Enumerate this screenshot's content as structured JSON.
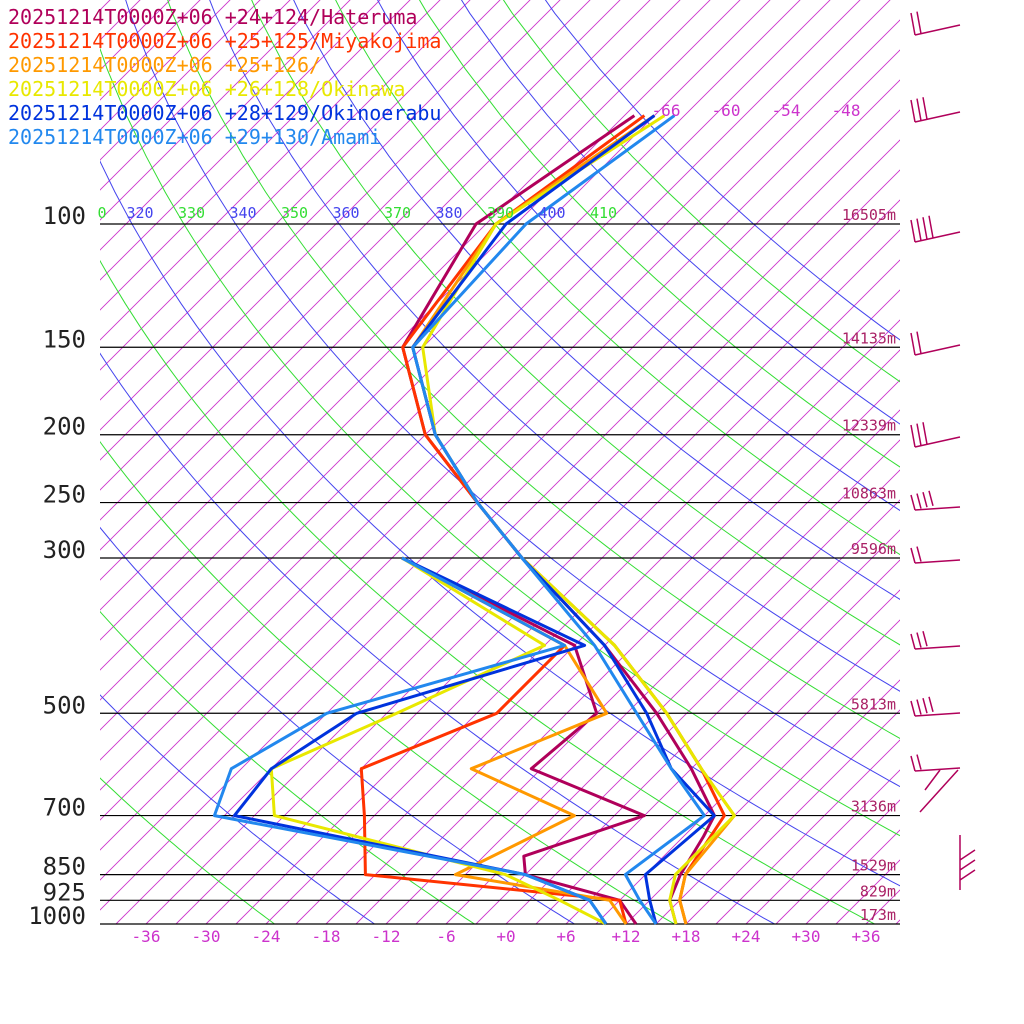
{
  "chart_data": {
    "type": "line",
    "subtype": "skew-T log-P sounding",
    "legend": [
      {
        "text": "20251214T0000Z+06 +24+124/Hateruma",
        "color": "#b0005a"
      },
      {
        "text": "20251214T0000Z+06 +25+125/Miyakojima",
        "color": "#ff3300"
      },
      {
        "text": "20251214T0000Z+06 +25+126/",
        "color": "#ff9900"
      },
      {
        "text": "20251214T0000Z+06 +26+128/Okinawa",
        "color": "#e8e800"
      },
      {
        "text": "20251214T0000Z+06 +28+129/Okinoerabu",
        "color": "#0033dd"
      },
      {
        "text": "20251214T0000Z+06 +29+130/Amami",
        "color": "#2288ee"
      }
    ],
    "legend_placement": "top-left",
    "pressure_levels": [
      {
        "p": 100,
        "label": "100",
        "height": "16505m"
      },
      {
        "p": 150,
        "label": "150",
        "height": "14135m"
      },
      {
        "p": 200,
        "label": "200",
        "height": "12339m"
      },
      {
        "p": 250,
        "label": "250",
        "height": "10863m"
      },
      {
        "p": 300,
        "label": "300",
        "height": "9596m"
      },
      {
        "p": 500,
        "label": "500",
        "height": "5813m"
      },
      {
        "p": 700,
        "label": "700",
        "height": "3136m"
      },
      {
        "p": 850,
        "label": "850",
        "height": "1529m"
      },
      {
        "p": 925,
        "label": "925",
        "height": "829m"
      },
      {
        "p": 1000,
        "label": "1000",
        "height": "173m"
      }
    ],
    "x_ticks": [
      "-36",
      "-30",
      "-24",
      "-18",
      "-12",
      "-6",
      "+0",
      "+6",
      "+12",
      "+18",
      "+24",
      "+30",
      "+36"
    ],
    "upper_temp_labels": [
      "-66",
      "-60",
      "-54",
      "-48"
    ],
    "theta_labels": [
      {
        "text": "0",
        "color": "#33dd33"
      },
      {
        "text": "320",
        "color": "#4444ee"
      },
      {
        "text": "330",
        "color": "#33dd33"
      },
      {
        "text": "340",
        "color": "#4444ee"
      },
      {
        "text": "350",
        "color": "#33dd33"
      },
      {
        "text": "360",
        "color": "#4444ee"
      },
      {
        "text": "370",
        "color": "#33dd33"
      },
      {
        "text": "380",
        "color": "#4444ee"
      },
      {
        "text": "390",
        "color": "#33dd33"
      },
      {
        "text": "400",
        "color": "#4444ee"
      },
      {
        "text": "410",
        "color": "#33dd33"
      }
    ],
    "colors": {
      "isotherm": "#cc33cc",
      "theta_a": "#4444ee",
      "theta_b": "#33dd33",
      "isobar": "#000000",
      "tick_label": "#cc33cc",
      "height_label": "#aa2266",
      "wind_barb": "#b0005a"
    },
    "series": [
      {
        "name": "20251214T0000Z+06 +24+124/Hateruma",
        "color": "#b0005a",
        "temperature": [
          [
            70,
            -68
          ],
          [
            100,
            -73
          ],
          [
            150,
            -68
          ],
          [
            200,
            -57
          ],
          [
            250,
            -45
          ],
          [
            300,
            -35
          ],
          [
            400,
            -18
          ],
          [
            500,
            -6
          ],
          [
            600,
            3
          ],
          [
            700,
            10
          ],
          [
            750,
            11
          ],
          [
            850,
            12.5
          ],
          [
            925,
            14
          ],
          [
            1000,
            17
          ]
        ],
        "dewpoint": [
          [
            300,
            -47
          ],
          [
            400,
            -21
          ],
          [
            500,
            -12
          ],
          [
            600,
            -13
          ],
          [
            700,
            3
          ],
          [
            800,
            -5
          ],
          [
            850,
            -3
          ],
          [
            925,
            9
          ],
          [
            1000,
            13
          ]
        ]
      },
      {
        "name": "20251214T0000Z+06 +25+125/Miyakojima",
        "color": "#ff3300",
        "temperature": [
          [
            70,
            -67
          ],
          [
            100,
            -71
          ],
          [
            150,
            -68
          ],
          [
            200,
            -57
          ],
          [
            250,
            -45
          ],
          [
            300,
            -35
          ],
          [
            400,
            -17
          ],
          [
            500,
            -5
          ],
          [
            600,
            4
          ],
          [
            700,
            11
          ],
          [
            850,
            13
          ],
          [
            925,
            15
          ],
          [
            1000,
            18
          ]
        ],
        "dewpoint": [
          [
            300,
            -47
          ],
          [
            400,
            -22
          ],
          [
            500,
            -22
          ],
          [
            600,
            -30
          ],
          [
            700,
            -25
          ],
          [
            850,
            -19
          ],
          [
            925,
            9
          ],
          [
            1000,
            12
          ]
        ]
      },
      {
        "name": "20251214T0000Z+06 +25+126/",
        "color": "#ff9900",
        "temperature": [
          [
            70,
            -66
          ],
          [
            100,
            -71
          ],
          [
            150,
            -67
          ],
          [
            200,
            -56
          ],
          [
            250,
            -45
          ],
          [
            300,
            -35
          ],
          [
            400,
            -17
          ],
          [
            500,
            -5
          ],
          [
            600,
            4
          ],
          [
            700,
            12
          ],
          [
            850,
            13
          ],
          [
            925,
            15
          ],
          [
            1000,
            18
          ]
        ],
        "dewpoint": [
          [
            300,
            -47
          ],
          [
            400,
            -22
          ],
          [
            500,
            -11
          ],
          [
            600,
            -19
          ],
          [
            700,
            -4
          ],
          [
            850,
            -10
          ],
          [
            925,
            8
          ],
          [
            1000,
            12
          ]
        ]
      },
      {
        "name": "20251214T0000Z+06 +26+128/Okinawa",
        "color": "#e8e800",
        "temperature": [
          [
            70,
            -65
          ],
          [
            100,
            -71
          ],
          [
            150,
            -66
          ],
          [
            200,
            -56
          ],
          [
            250,
            -45
          ],
          [
            300,
            -35
          ],
          [
            400,
            -17
          ],
          [
            500,
            -5
          ],
          [
            600,
            4
          ],
          [
            700,
            12
          ],
          [
            850,
            12
          ],
          [
            925,
            14
          ],
          [
            1000,
            17
          ]
        ],
        "dewpoint": [
          [
            300,
            -47
          ],
          [
            400,
            -24
          ],
          [
            500,
            -32
          ],
          [
            600,
            -39
          ],
          [
            700,
            -34
          ],
          [
            850,
            -5
          ],
          [
            925,
            3
          ],
          [
            1000,
            10
          ]
        ]
      },
      {
        "name": "20251214T0000Z+06 +28+129/Okinoerabu",
        "color": "#0033dd",
        "temperature": [
          [
            70,
            -66
          ],
          [
            100,
            -70
          ],
          [
            150,
            -67
          ],
          [
            200,
            -56
          ],
          [
            250,
            -45
          ],
          [
            300,
            -35
          ],
          [
            400,
            -18
          ],
          [
            500,
            -7
          ],
          [
            600,
            1
          ],
          [
            700,
            10
          ],
          [
            850,
            9
          ],
          [
            925,
            12
          ],
          [
            1000,
            15
          ]
        ],
        "dewpoint": [
          [
            300,
            -47
          ],
          [
            400,
            -20
          ],
          [
            500,
            -36
          ],
          [
            600,
            -39
          ],
          [
            700,
            -38
          ],
          [
            850,
            -3
          ],
          [
            925,
            6
          ],
          [
            1000,
            10
          ]
        ]
      },
      {
        "name": "20251214T0000Z+06 +29+130/Amami",
        "color": "#2288ee",
        "temperature": [
          [
            70,
            -64
          ],
          [
            100,
            -68
          ],
          [
            150,
            -67
          ],
          [
            200,
            -56
          ],
          [
            250,
            -45
          ],
          [
            300,
            -35
          ],
          [
            400,
            -19
          ],
          [
            500,
            -8
          ],
          [
            600,
            1
          ],
          [
            700,
            9
          ],
          [
            850,
            7
          ],
          [
            925,
            11
          ],
          [
            1000,
            15
          ]
        ],
        "dewpoint": [
          [
            300,
            -47
          ],
          [
            400,
            -22
          ],
          [
            500,
            -39
          ],
          [
            600,
            -43
          ],
          [
            700,
            -40
          ],
          [
            850,
            -3
          ],
          [
            925,
            6
          ],
          [
            1000,
            10
          ]
        ]
      }
    ]
  }
}
